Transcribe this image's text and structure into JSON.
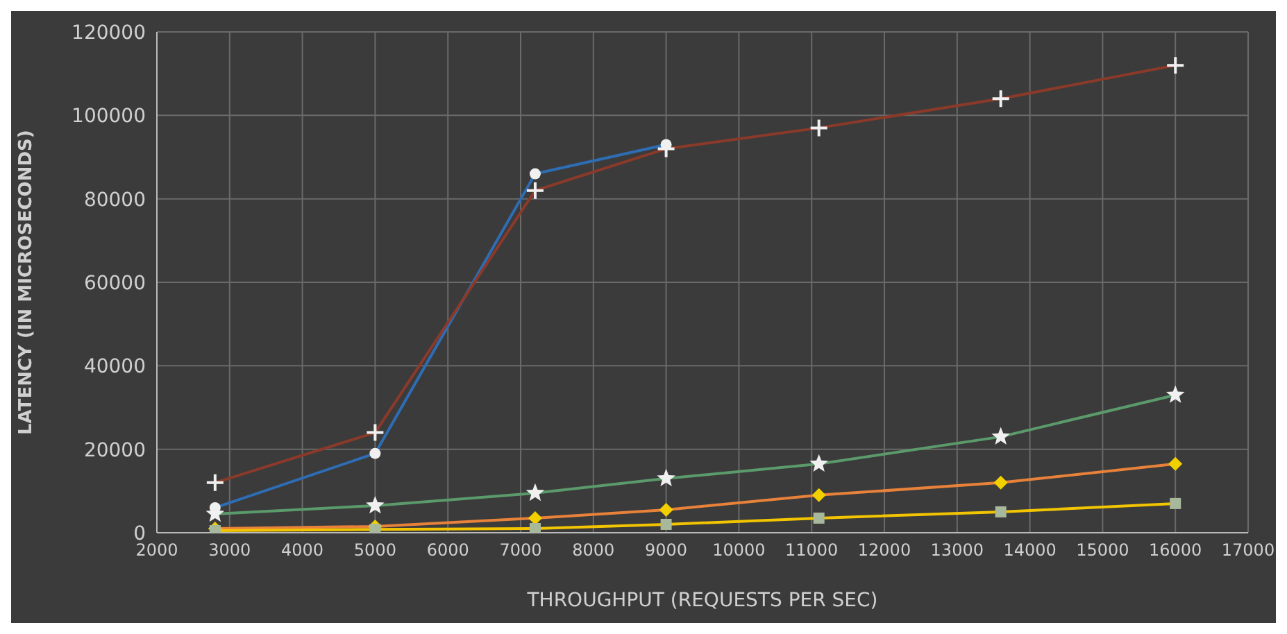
{
  "chart_data": {
    "type": "line",
    "xlabel": "THROUGHPUT (REQUESTS PER SEC)",
    "ylabel": "LATENCY (IN MICROSECONDS)",
    "x": [
      2800,
      5000,
      7200,
      9000,
      11100,
      13600,
      16000
    ],
    "xlim": [
      2000,
      17000
    ],
    "xticks": [
      2000,
      3000,
      4000,
      5000,
      6000,
      7000,
      8000,
      9000,
      10000,
      11000,
      12000,
      13000,
      14000,
      15000,
      16000,
      17000
    ],
    "ylim": [
      0,
      120000
    ],
    "yticks": [
      0,
      20000,
      40000,
      60000,
      80000,
      100000,
      120000
    ],
    "grid": true,
    "legend": false,
    "series": [
      {
        "color": "#2e6db4",
        "marker": "circle",
        "values": [
          6000,
          19000,
          86000,
          93000,
          null,
          null,
          null
        ]
      },
      {
        "color": "#8b3a2a",
        "marker": "cross",
        "values": [
          12000,
          24000,
          82000,
          92000,
          97000,
          104000,
          112000
        ]
      },
      {
        "color": "#5b9a6b",
        "marker": "star",
        "values": [
          4500,
          6500,
          9500,
          13000,
          16500,
          23000,
          33000
        ]
      },
      {
        "color": "#e8823a",
        "marker": "diamond",
        "values": [
          1000,
          1500,
          3500,
          5500,
          9000,
          12000,
          16500
        ]
      },
      {
        "color": "#f2c500",
        "marker": "square",
        "values": [
          500,
          800,
          1000,
          2000,
          3500,
          5000,
          7000
        ]
      }
    ]
  }
}
